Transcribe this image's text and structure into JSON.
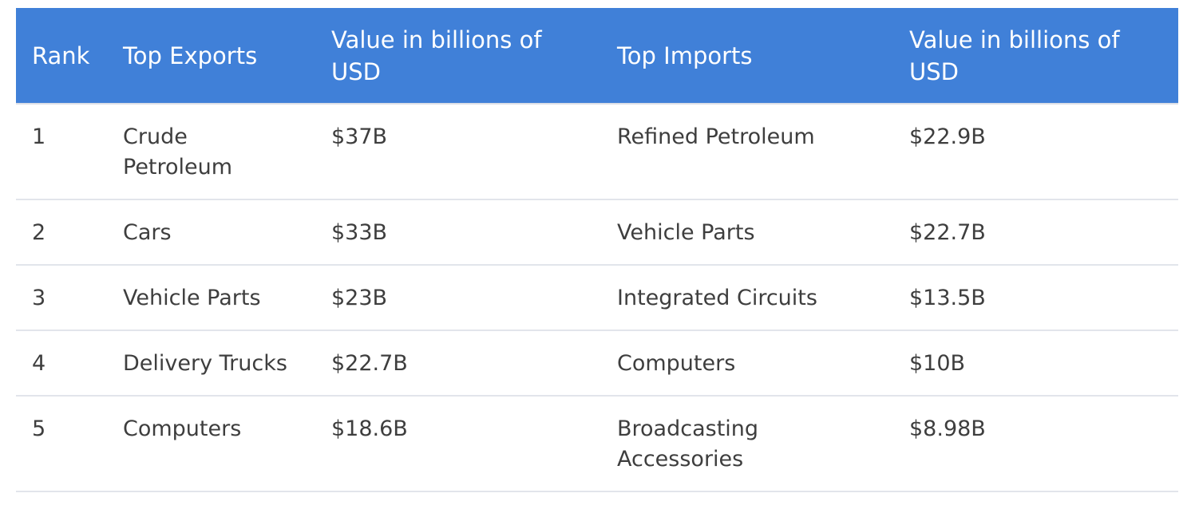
{
  "table": {
    "headers": {
      "rank": "Rank",
      "top_exports": "Top Exports",
      "exports_value": "Value in billions of USD",
      "top_imports": "Top Imports",
      "imports_value": "Value in billions of USD"
    },
    "rows": [
      {
        "rank": "1",
        "export": "Crude Petroleum",
        "export_value": "$37B",
        "import": "Refined Petroleum",
        "import_value": "$22.9B"
      },
      {
        "rank": "2",
        "export": "Cars",
        "export_value": "$33B",
        "import": "Vehicle Parts",
        "import_value": "$22.7B"
      },
      {
        "rank": "3",
        "export": "Vehicle Parts",
        "export_value": "$23B",
        "import": "Integrated Circuits",
        "import_value": "$13.5B"
      },
      {
        "rank": "4",
        "export": "Delivery Trucks",
        "export_value": "$22.7B",
        "import": "Computers",
        "import_value": "$10B"
      },
      {
        "rank": "5",
        "export": "Computers",
        "export_value": "$18.6B",
        "import": "Broadcasting Accessories",
        "import_value": "$8.98B"
      }
    ]
  },
  "colors": {
    "header_background": "#4080d8",
    "header_text": "#ffffff",
    "body_text": "#3e3e3e",
    "row_divider": "#e2e5eb"
  }
}
